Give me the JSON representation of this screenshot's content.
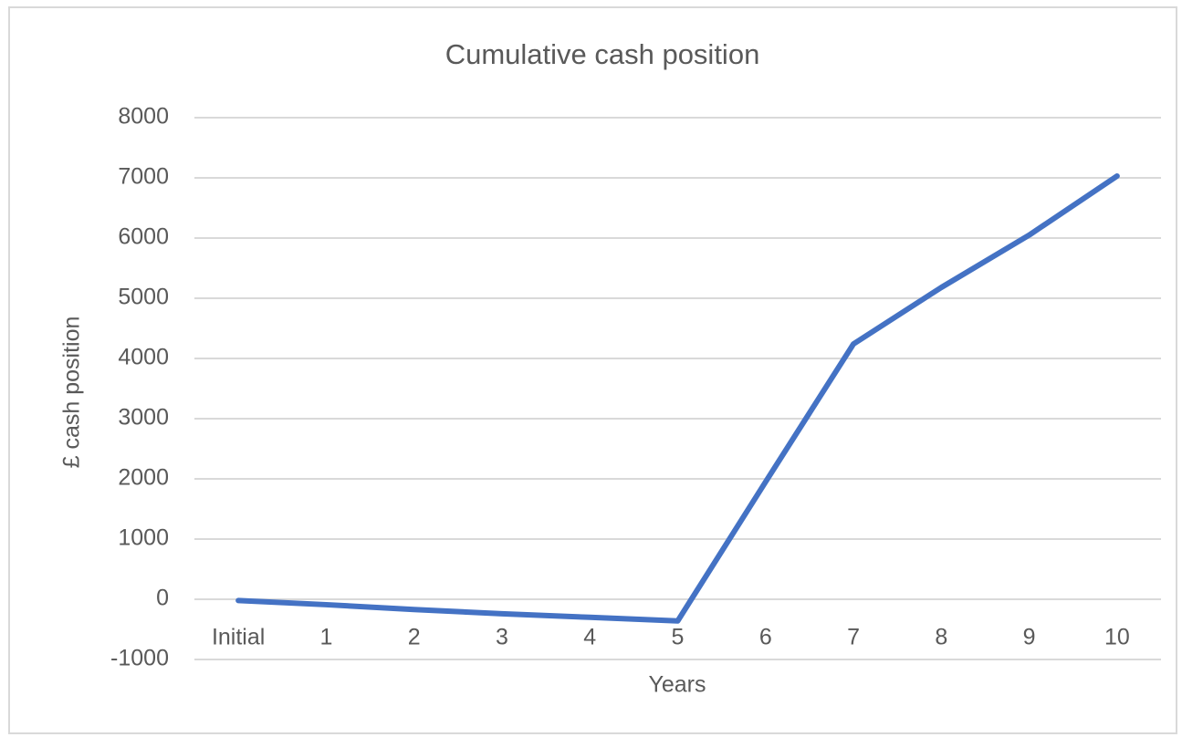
{
  "chart_data": {
    "type": "line",
    "title": "Cumulative cash position",
    "x_label": "Years",
    "y_label": "£ cash position",
    "categories": [
      "Initial",
      "1",
      "2",
      "3",
      "4",
      "5",
      "6",
      "7",
      "8",
      "9",
      "10"
    ],
    "series": [
      {
        "name": "Cumulative cash position",
        "color": "#4472c4",
        "values": [
          -20,
          -90,
          -170,
          -240,
          -300,
          -360,
          1950,
          4240,
          5180,
          6050,
          7030
        ]
      }
    ],
    "ylim": [
      -1000,
      8000
    ],
    "yticks": [
      -1000,
      0,
      1000,
      2000,
      3000,
      4000,
      5000,
      6000,
      7000,
      8000
    ],
    "grid": true
  }
}
